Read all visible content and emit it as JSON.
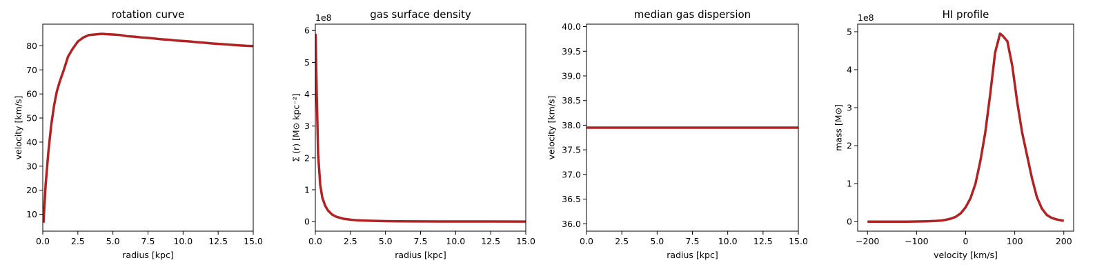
{
  "chart_data": [
    {
      "type": "line",
      "title": "rotation curve",
      "xlabel": "radius [kpc]",
      "ylabel": "velocity [km/s]",
      "offset_text": "",
      "xlim": [
        0,
        15
      ],
      "ylim": [
        3,
        89
      ],
      "xticks": [
        0,
        2.5,
        5,
        7.5,
        10,
        12.5,
        15
      ],
      "xtick_labels": [
        "0.0",
        "2.5",
        "5.0",
        "7.5",
        "10.0",
        "12.5",
        "15.0"
      ],
      "yticks": [
        10,
        20,
        30,
        40,
        50,
        60,
        70,
        80
      ],
      "ytick_labels": [
        "10",
        "20",
        "30",
        "40",
        "50",
        "60",
        "70",
        "80"
      ],
      "color": "#b22222",
      "series": [
        {
          "x": [
            0.05,
            0.2,
            0.4,
            0.6,
            0.8,
            1.0,
            1.2,
            1.5,
            1.8,
            2.1,
            2.5,
            2.9,
            3.3,
            3.7,
            4.2,
            4.6,
            5.0,
            5.5,
            6.0,
            6.5,
            7.0,
            7.5,
            8.0,
            8.5,
            9.0,
            9.5,
            10.0,
            10.5,
            11.0,
            11.5,
            12.0,
            12.5,
            13.0,
            13.5,
            14.0,
            14.5,
            15.0
          ],
          "y": [
            6.5,
            22,
            36,
            47,
            55,
            61,
            65,
            70,
            75.5,
            78.5,
            81.8,
            83.5,
            84.5,
            84.7,
            85.0,
            84.8,
            84.7,
            84.5,
            84.0,
            83.8,
            83.5,
            83.3,
            83.0,
            82.7,
            82.5,
            82.2,
            82.0,
            81.8,
            81.5,
            81.3,
            81.0,
            80.8,
            80.6,
            80.4,
            80.2,
            80.0,
            79.9
          ]
        }
      ]
    },
    {
      "type": "line",
      "title": "gas surface density",
      "xlabel": "radius [kpc]",
      "ylabel": "Σ (r) [M⊙ kpc⁻²]",
      "offset_text": "1e8",
      "xlim": [
        0,
        15
      ],
      "ylim": [
        -0.3,
        6.2
      ],
      "xticks": [
        0,
        2.5,
        5,
        7.5,
        10,
        12.5,
        15
      ],
      "xtick_labels": [
        "0.0",
        "2.5",
        "5.0",
        "7.5",
        "10.0",
        "12.5",
        "15.0"
      ],
      "yticks": [
        0,
        1,
        2,
        3,
        4,
        5,
        6
      ],
      "ytick_labels": [
        "0",
        "1",
        "2",
        "3",
        "4",
        "5",
        "6"
      ],
      "color": "#b22222",
      "series": [
        {
          "x": [
            0.02,
            0.1,
            0.2,
            0.35,
            0.5,
            0.7,
            0.9,
            1.2,
            1.5,
            2.0,
            2.5,
            3.0,
            4.0,
            5.0,
            6.0,
            7.5,
            10.0,
            12.5,
            15.0
          ],
          "y": [
            5.9,
            4.0,
            2.1,
            1.15,
            0.75,
            0.5,
            0.35,
            0.22,
            0.15,
            0.09,
            0.06,
            0.04,
            0.025,
            0.015,
            0.01,
            0.006,
            0.003,
            0.002,
            0.001
          ]
        }
      ]
    },
    {
      "type": "line",
      "title": "median gas dispersion",
      "xlabel": "radius [kpc]",
      "ylabel": "velocity [km/s]",
      "offset_text": "",
      "xlim": [
        0,
        15
      ],
      "ylim": [
        35.85,
        40.05
      ],
      "xticks": [
        0,
        2.5,
        5,
        7.5,
        10,
        12.5,
        15
      ],
      "xtick_labels": [
        "0.0",
        "2.5",
        "5.0",
        "7.5",
        "10.0",
        "12.5",
        "15.0"
      ],
      "yticks": [
        36.0,
        36.5,
        37.0,
        37.5,
        38.0,
        38.5,
        39.0,
        39.5,
        40.0
      ],
      "ytick_labels": [
        "36.0",
        "36.5",
        "37.0",
        "37.5",
        "38.0",
        "38.5",
        "39.0",
        "39.5",
        "40.0"
      ],
      "color": "#b22222",
      "series": [
        {
          "x": [
            0,
            15
          ],
          "y": [
            37.95,
            37.95
          ]
        }
      ]
    },
    {
      "type": "line",
      "title": "HI profile",
      "xlabel": "velocity [km/s]",
      "ylabel": "mass [M⊙]",
      "offset_text": "1e8",
      "xlim": [
        -220,
        220
      ],
      "ylim": [
        -0.25,
        5.2
      ],
      "xticks": [
        -200,
        -100,
        0,
        100,
        200
      ],
      "xtick_labels": [
        "−200",
        "−100",
        "0",
        "100",
        "200"
      ],
      "yticks": [
        0,
        1,
        2,
        3,
        4,
        5
      ],
      "ytick_labels": [
        "0",
        "1",
        "2",
        "3",
        "4",
        "5"
      ],
      "color": "#b22222",
      "series": [
        {
          "x": [
            -200,
            -180,
            -160,
            -140,
            -120,
            -100,
            -80,
            -60,
            -50,
            -40,
            -30,
            -20,
            -10,
            0,
            10,
            20,
            30,
            40,
            50,
            60,
            70,
            75,
            85,
            95,
            105,
            115,
            125,
            135,
            145,
            155,
            165,
            175,
            185,
            200
          ],
          "y": [
            0,
            0,
            0,
            0,
            0,
            0.005,
            0.01,
            0.02,
            0.03,
            0.05,
            0.08,
            0.13,
            0.22,
            0.38,
            0.62,
            1.0,
            1.6,
            2.35,
            3.35,
            4.45,
            4.95,
            4.9,
            4.75,
            4.1,
            3.15,
            2.35,
            1.75,
            1.15,
            0.65,
            0.35,
            0.18,
            0.1,
            0.06,
            0.02
          ]
        }
      ]
    }
  ]
}
